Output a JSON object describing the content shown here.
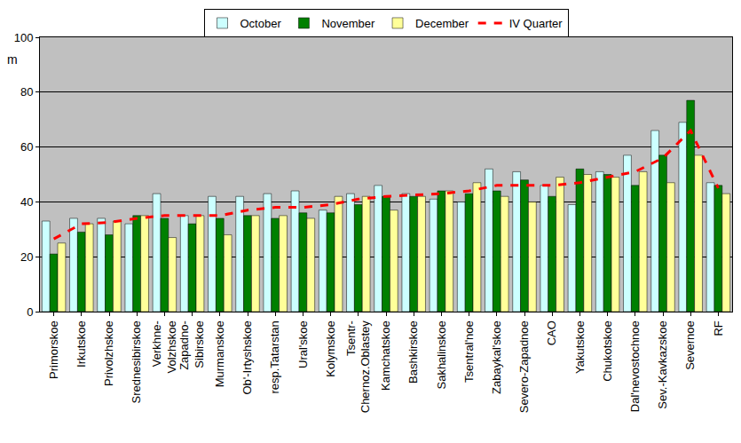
{
  "chart_data": {
    "type": "bar",
    "y_label": "m",
    "categories": [
      "Primorskoe",
      "Irkutskoe",
      "Privolzhskoe",
      "Srednesibirskoe",
      "Verkhne-\nVolzhskoe",
      "Zapadno-\nSibirskoe",
      "Murmanskoe",
      "Ob'-Irtyshskoe",
      "resp.Tatarstan",
      "Ural'skoe",
      "Kolymskoe",
      "Tsentr-\nChernoz.Oblastey",
      "Kamchatskoe",
      "Bashkirskoe",
      "Sakhalinskoe",
      "Tsentral'noe",
      "Zabaykal'skoe",
      "Severo-Zapadnoe",
      "CAO",
      "Yakutskoe",
      "Chukotskoe",
      "Dal'nevostochnoe",
      "Sev.-Kavkazskoe",
      "Severnoe",
      "RF"
    ],
    "series": [
      {
        "name": "October",
        "type": "bar",
        "color": "#ccffff",
        "values": [
          33,
          34,
          34,
          32,
          43,
          35,
          42,
          42,
          43,
          44,
          37,
          43,
          46,
          43,
          41,
          40,
          52,
          51,
          46,
          39,
          51,
          57,
          66,
          69,
          47
        ]
      },
      {
        "name": "November",
        "type": "bar",
        "color": "#008000",
        "values": [
          21,
          29,
          28,
          35,
          34,
          32,
          34,
          35,
          34,
          36,
          36,
          39,
          42,
          42,
          44,
          43,
          44,
          48,
          42,
          52,
          50,
          46,
          57,
          77,
          46
        ]
      },
      {
        "name": "December",
        "type": "bar",
        "color": "#ffff99",
        "values": [
          25,
          32,
          33,
          35,
          27,
          35,
          28,
          35,
          35,
          34,
          42,
          42,
          37,
          42,
          44,
          47,
          42,
          40,
          49,
          50,
          49,
          51,
          47,
          57,
          43
        ]
      },
      {
        "name": "IV Quarter",
        "type": "line",
        "color": "#ff0000",
        "line_style": "dashed",
        "values": [
          26.5,
          32,
          32.5,
          34,
          35,
          35,
          35,
          37,
          38,
          38,
          39,
          41,
          42,
          42.5,
          43,
          44,
          46,
          46,
          46,
          47,
          49,
          51,
          56,
          66,
          45
        ]
      }
    ],
    "ylim": [
      0,
      100
    ],
    "yticks": [
      0,
      20,
      40,
      60,
      80,
      100
    ],
    "grid": true,
    "legend": "top"
  }
}
